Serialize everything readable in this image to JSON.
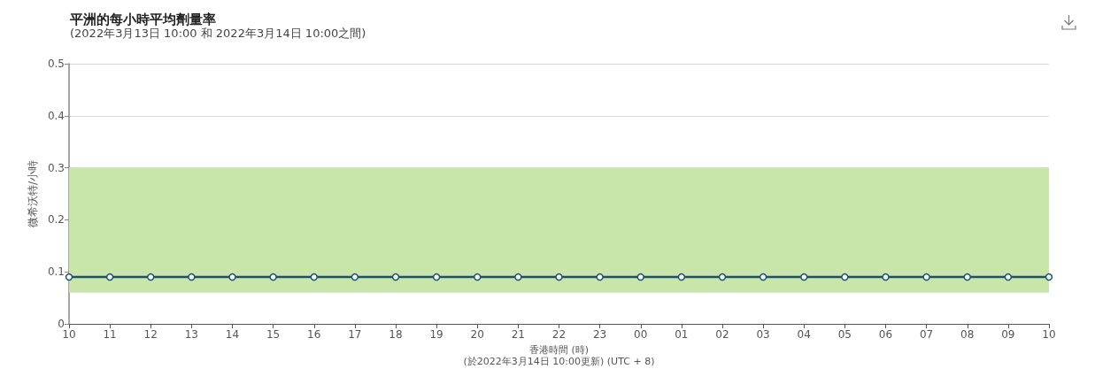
{
  "chart_data": {
    "type": "line",
    "title": "平洲的每小時平均劑量率",
    "subtitle": "(2022年3月13日 10:00 和 2022年3月14日 10:00之間)",
    "xlabel": "香港時間 (時)\n(於2022年3月14日 10:00更新) (UTC + 8)",
    "ylabel": "微希沃特/小時",
    "categories": [
      "10",
      "11",
      "12",
      "13",
      "14",
      "15",
      "16",
      "17",
      "18",
      "19",
      "20",
      "21",
      "22",
      "23",
      "00",
      "01",
      "02",
      "03",
      "04",
      "05",
      "06",
      "07",
      "08",
      "09",
      "10"
    ],
    "series": [
      {
        "color": "#1f4f6e",
        "values": [
          0.09,
          0.09,
          0.09,
          0.09,
          0.09,
          0.09,
          0.09,
          0.09,
          0.09,
          0.09,
          0.09,
          0.09,
          0.09,
          0.09,
          0.09,
          0.09,
          0.09,
          0.09,
          0.09,
          0.09,
          0.09,
          0.09,
          0.09,
          0.09,
          0.09
        ]
      }
    ],
    "ylim": [
      0,
      0.5
    ],
    "yticks": [
      0,
      0.1,
      0.2,
      0.3,
      0.4,
      0.5
    ],
    "grid": "y",
    "marker": "circle",
    "line_style": "solid",
    "bands": [
      {
        "axis": "y",
        "from": 0.06,
        "to": 0.3,
        "color": "#c9e5aa"
      }
    ]
  }
}
